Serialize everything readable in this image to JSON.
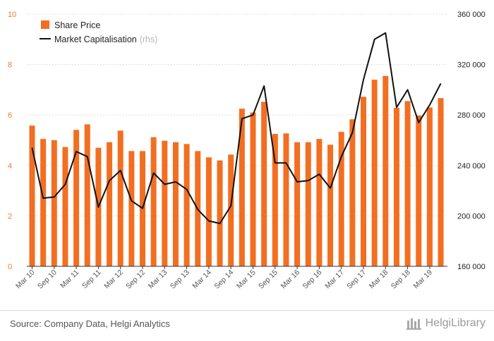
{
  "chart_data": {
    "type": "bar+line",
    "categories": [
      "Mar 10",
      "Jun 10",
      "Sep 10",
      "Dec 10",
      "Mar 11",
      "Jun 11",
      "Sep 11",
      "Dec 11",
      "Mar 12",
      "Jun 12",
      "Sep 12",
      "Dec 12",
      "Mar 13",
      "Jun 13",
      "Sep 13",
      "Dec 13",
      "Mar 14",
      "Jun 14",
      "Sep 14",
      "Dec 14",
      "Mar 15",
      "Jun 15",
      "Sep 15",
      "Dec 15",
      "Mar 16",
      "Jun 16",
      "Sep 16",
      "Dec 16",
      "Mar 17",
      "Jun 17",
      "Sep 17",
      "Dec 17",
      "Mar 18",
      "Jun 18",
      "Sep 18",
      "Dec 18",
      "Mar 19",
      "Jun 19"
    ],
    "x_tick_labels": [
      "Mar 10",
      "Sep 10",
      "Mar 11",
      "Sep 11",
      "Mar 12",
      "Sep 12",
      "Mar 13",
      "Sep 13",
      "Mar 14",
      "Sep 14",
      "Mar 15",
      "Sep 15",
      "Mar 16",
      "Sep 16",
      "Mar 17",
      "Sep 17",
      "Mar 18",
      "Sep 18",
      "Mar 19"
    ],
    "series": [
      {
        "name": "Share Price",
        "kind": "bar",
        "axis": "left",
        "color": "#f26f21",
        "values": [
          5.58,
          5.05,
          5.0,
          4.73,
          5.41,
          5.63,
          4.7,
          4.92,
          5.38,
          4.57,
          4.57,
          5.12,
          4.98,
          4.92,
          4.85,
          4.57,
          4.32,
          4.2,
          4.43,
          6.25,
          6.1,
          6.52,
          5.25,
          5.27,
          4.92,
          4.92,
          5.05,
          4.82,
          5.33,
          5.83,
          6.72,
          7.4,
          7.55,
          6.28,
          6.55,
          5.98,
          6.3,
          6.67
        ]
      },
      {
        "name": "Market Capitalisation",
        "name_suffix": "(rhs)",
        "kind": "line",
        "axis": "right",
        "color": "#111111",
        "values": [
          254000,
          214000,
          215000,
          225000,
          251000,
          247000,
          207000,
          228000,
          236000,
          212000,
          206000,
          234000,
          225000,
          227000,
          221000,
          205000,
          196000,
          194000,
          208000,
          277000,
          280000,
          303000,
          242000,
          242000,
          227000,
          228000,
          233000,
          222000,
          247000,
          266000,
          308000,
          340000,
          345000,
          286000,
          300000,
          274000,
          288000,
          305000
        ]
      }
    ],
    "left_axis": {
      "min": 0,
      "max": 10,
      "ticks": [
        "0",
        "2",
        "4",
        "6",
        "8",
        "10"
      ]
    },
    "right_axis": {
      "min": 160000,
      "max": 360000,
      "ticks": [
        "160 000",
        "200 000",
        "240 000",
        "280 000",
        "320 000",
        "360 000"
      ]
    },
    "grid": "horizontal",
    "legend_position": "top-left"
  },
  "footer": {
    "source": "Source: Company Data, Helgi Analytics",
    "brand": "HelgiLibrary"
  }
}
